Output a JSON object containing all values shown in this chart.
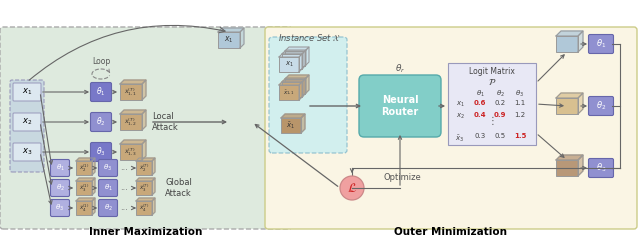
{
  "title_left": "Inner Maximization",
  "title_right": "Outer Minimization",
  "bg_left": "#deeade",
  "bg_right": "#faf5e4",
  "bg_instance": "#cceef0",
  "neural_router_color": "#82cec8",
  "logit_bg": "#e8e8f5",
  "instance_set_text": "Instance Set $\\mathcal{X}$",
  "loop_text": "Loop",
  "local_attack_text": "Local\nAttack",
  "global_attack_text": "Global\nAttack",
  "optimize_text": "Optimize",
  "loss_text": "$\\mathcal{L}$",
  "theta_r_text": "$\\theta_r$",
  "logit_matrix_title": "Logit Matrix",
  "box_theta_dark": "#7878c8",
  "box_theta_med": "#9090d0",
  "box_theta_light": "#b0b0e0",
  "box_x_tan": "#c8a87a",
  "box_x_tan_light": "#d8c090",
  "box_x_blue": "#b0c8d8",
  "box_x_blue_light": "#c8dce8",
  "loss_color": "#f0a0a0",
  "arrow_color": "#666666",
  "edge_color": "#999999"
}
